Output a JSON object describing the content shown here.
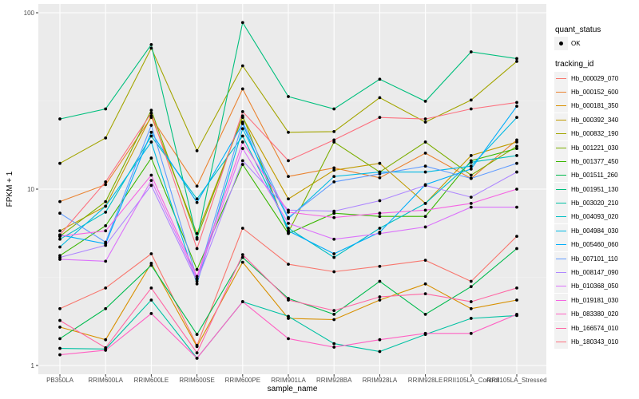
{
  "chart_data": {
    "type": "line",
    "title": "",
    "xlabel": "sample_name",
    "ylabel": "FPKM + 1",
    "yscale": "log10",
    "ylim": [
      1,
      100
    ],
    "yticks": [
      {
        "value": 1,
        "label": "1"
      },
      {
        "value": 10,
        "label": "10"
      },
      {
        "value": 100,
        "label": "100"
      }
    ],
    "grid": true,
    "legend_position": "right",
    "categories": [
      "PB350LA",
      "RRIM600LA",
      "RRIM600LE",
      "RRIM600SE",
      "RRIM600PE",
      "RRIM901LA",
      "RRIM928BA",
      "RRIM928LA",
      "RRIM928LE",
      "RRII105LA_Control",
      "RRII105LA_Stressed"
    ],
    "quant_status_legend": {
      "title": "quant_status",
      "items": [
        "OK"
      ]
    },
    "tracking_legend_title": "tracking_id",
    "series": [
      {
        "name": "Hb_000029_070",
        "color": "#F8766D",
        "values": [
          2.1,
          2.75,
          4.3,
          1.3,
          6.0,
          3.75,
          3.4,
          3.65,
          3.95,
          3.0,
          5.4
        ]
      },
      {
        "name": "Hb_000152_600",
        "color": "#EA8331",
        "values": [
          8.5,
          10.6,
          25.5,
          10.4,
          37.0,
          11.8,
          13.2,
          11.6,
          16.0,
          11.5,
          19.0
        ]
      },
      {
        "name": "Hb_000181_350",
        "color": "#D89000",
        "values": [
          1.65,
          1.4,
          3.8,
          1.28,
          3.85,
          1.85,
          1.82,
          2.35,
          2.9,
          2.1,
          2.35
        ]
      },
      {
        "name": "Hb_000392_340",
        "color": "#C09B00",
        "values": [
          5.8,
          8.0,
          26.0,
          5.6,
          25.5,
          8.8,
          12.8,
          14.0,
          8.3,
          15.5,
          18.5
        ]
      },
      {
        "name": "Hb_000832_190",
        "color": "#A3A500",
        "values": [
          14.0,
          19.5,
          63.0,
          16.5,
          50.0,
          21.0,
          21.2,
          33.0,
          24.0,
          32.0,
          53.0
        ]
      },
      {
        "name": "Hb_001221_030",
        "color": "#7CAE00",
        "values": [
          5.4,
          8.5,
          28.0,
          5.3,
          26.0,
          5.7,
          18.5,
          12.5,
          18.5,
          12.0,
          17.5
        ]
      },
      {
        "name": "Hb_001377_450",
        "color": "#39B600",
        "values": [
          4.2,
          6.2,
          15.0,
          3.5,
          13.8,
          5.6,
          7.3,
          7.0,
          7.0,
          14.5,
          17.0
        ]
      },
      {
        "name": "Hb_001511_260",
        "color": "#00BB4E",
        "values": [
          1.42,
          2.1,
          3.7,
          1.5,
          4.1,
          2.4,
          1.95,
          3.0,
          1.95,
          2.8,
          4.6
        ]
      },
      {
        "name": "Hb_001951_130",
        "color": "#00BF7D",
        "values": [
          25.0,
          28.5,
          66.0,
          5.2,
          88.0,
          33.5,
          28.5,
          42.0,
          31.5,
          60.0,
          55.0
        ]
      },
      {
        "name": "Hb_003020_210",
        "color": "#00C1A3",
        "values": [
          1.25,
          1.24,
          2.35,
          1.1,
          2.3,
          1.9,
          1.33,
          1.2,
          1.5,
          1.85,
          1.92
        ]
      },
      {
        "name": "Hb_004093_020",
        "color": "#00BFC4",
        "values": [
          5.2,
          7.4,
          20.0,
          8.8,
          20.0,
          6.0,
          4.1,
          6.0,
          8.3,
          14.2,
          15.5
        ]
      },
      {
        "name": "Hb_004984_030",
        "color": "#00B9E3",
        "values": [
          4.7,
          8.0,
          18.5,
          2.9,
          22.0,
          6.8,
          11.8,
          12.5,
          12.5,
          13.5,
          25.5
        ]
      },
      {
        "name": "Hb_005460_060",
        "color": "#00ADFA",
        "values": [
          5.5,
          4.9,
          21.0,
          8.4,
          23.5,
          5.8,
          4.3,
          5.7,
          10.6,
          13.0,
          29.5
        ]
      },
      {
        "name": "Hb_007101_110",
        "color": "#619CFF",
        "values": [
          7.3,
          5.0,
          23.0,
          3.1,
          24.0,
          6.9,
          11.0,
          12.2,
          13.5,
          11.5,
          14.0
        ]
      },
      {
        "name": "Hb_008147_090",
        "color": "#AE87FF",
        "values": [
          4.1,
          4.8,
          10.5,
          3.0,
          14.5,
          7.6,
          7.5,
          8.6,
          10.5,
          9.0,
          12.5
        ]
      },
      {
        "name": "Hb_010368_050",
        "color": "#DB72FB",
        "values": [
          4.0,
          3.9,
          11.2,
          3.1,
          17.0,
          6.4,
          5.2,
          5.6,
          6.1,
          7.9,
          7.9
        ]
      },
      {
        "name": "Hb_019181_030",
        "color": "#F564E3",
        "values": [
          5.4,
          5.8,
          12.0,
          3.2,
          18.5,
          7.4,
          6.9,
          7.3,
          7.6,
          8.3,
          10.0
        ]
      },
      {
        "name": "Hb_083380_020",
        "color": "#FF61C3",
        "values": [
          1.15,
          1.22,
          1.97,
          1.1,
          2.3,
          1.42,
          1.27,
          1.4,
          1.52,
          1.52,
          1.95
        ]
      },
      {
        "name": "Hb_166574_010",
        "color": "#FF67A4",
        "values": [
          1.8,
          1.26,
          2.75,
          1.18,
          4.25,
          2.35,
          2.05,
          2.45,
          2.55,
          2.3,
          2.75
        ]
      },
      {
        "name": "Hb_180343_010",
        "color": "#FC717F",
        "values": [
          5.5,
          11.0,
          27.0,
          4.6,
          27.5,
          14.5,
          19.0,
          25.5,
          25.0,
          28.5,
          31.0
        ]
      }
    ]
  }
}
